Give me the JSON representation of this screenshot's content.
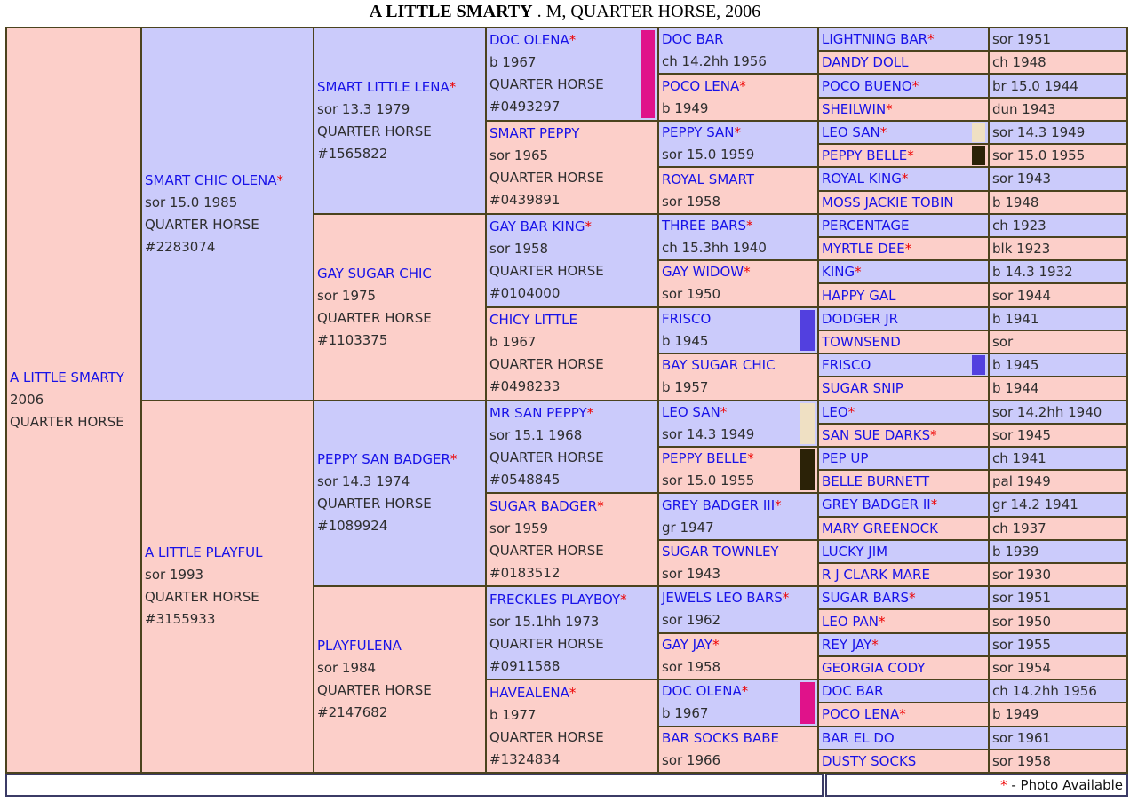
{
  "header": {
    "name": "A LITTLE SMARTY",
    "suffix": " . M, QUARTER HORSE, 2006"
  },
  "footer": {
    "star": "*",
    "note": " - Photo Available"
  },
  "colors": {
    "magenta": "#E0128A",
    "indigo": "#5240DF",
    "beige": "#EFE0C3",
    "darkbrown": "#2B2207",
    "sire_bg": "#CBCBFB",
    "dam_bg": "#FCCFC9",
    "name_blue": "#1812E8",
    "star_red": "#EE0202"
  },
  "pedigree": {
    "subject": {
      "name": "A LITTLE SMARTY",
      "star": false,
      "lines": [
        "2006",
        "QUARTER HORSE"
      ]
    },
    "gen1": [
      {
        "name": "SMART CHIC OLENA",
        "star": true,
        "lines": [
          "sor 15.0 1985",
          "QUARTER HORSE",
          "#2283074"
        ]
      },
      {
        "name": "A LITTLE PLAYFUL",
        "star": false,
        "lines": [
          "sor 1993",
          "QUARTER HORSE",
          "#3155933"
        ]
      }
    ],
    "gen2": [
      {
        "name": "SMART LITTLE LENA",
        "star": true,
        "lines": [
          "sor 13.3 1979",
          "QUARTER HORSE",
          "#1565822"
        ]
      },
      {
        "name": "GAY SUGAR CHIC",
        "star": false,
        "lines": [
          "sor 1975",
          "QUARTER HORSE",
          "#1103375"
        ]
      },
      {
        "name": "PEPPY SAN BADGER",
        "star": true,
        "lines": [
          "sor 14.3 1974",
          "QUARTER HORSE",
          "#1089924"
        ]
      },
      {
        "name": "PLAYFULENA",
        "star": false,
        "lines": [
          "sor 1984",
          "QUARTER HORSE",
          "#2147682"
        ]
      }
    ],
    "gen3": [
      {
        "name": "DOC OLENA",
        "star": true,
        "lines": [
          "b 1967",
          "QUARTER HORSE",
          "#0493297"
        ],
        "swatch": "magenta"
      },
      {
        "name": "SMART PEPPY",
        "star": false,
        "lines": [
          "sor 1965",
          "QUARTER HORSE",
          "#0439891"
        ]
      },
      {
        "name": "GAY BAR KING",
        "star": true,
        "lines": [
          "sor 1958",
          "QUARTER HORSE",
          "#0104000"
        ]
      },
      {
        "name": "CHICY LITTLE",
        "star": false,
        "lines": [
          "b 1967",
          "QUARTER HORSE",
          "#0498233"
        ]
      },
      {
        "name": "MR SAN PEPPY",
        "star": true,
        "lines": [
          "sor 15.1 1968",
          "QUARTER HORSE",
          "#0548845"
        ]
      },
      {
        "name": "SUGAR BADGER",
        "star": true,
        "lines": [
          "sor 1959",
          "QUARTER HORSE",
          "#0183512"
        ]
      },
      {
        "name": "FRECKLES PLAYBOY",
        "star": true,
        "lines": [
          "sor 15.1hh 1973",
          "QUARTER HORSE",
          "#0911588"
        ]
      },
      {
        "name": "HAVEALENA",
        "star": true,
        "lines": [
          "b 1977",
          "QUARTER HORSE",
          "#1324834"
        ]
      }
    ],
    "gen4": [
      {
        "name": "DOC BAR",
        "star": false,
        "info": "ch 14.2hh 1956"
      },
      {
        "name": "POCO LENA",
        "star": true,
        "info": "b 1949"
      },
      {
        "name": "PEPPY SAN",
        "star": true,
        "info": "sor 15.0 1959"
      },
      {
        "name": "ROYAL SMART",
        "star": false,
        "info": "sor 1958"
      },
      {
        "name": "THREE BARS",
        "star": true,
        "info": "ch 15.3hh 1940"
      },
      {
        "name": "GAY WIDOW",
        "star": true,
        "info": "sor 1950"
      },
      {
        "name": "FRISCO",
        "star": false,
        "info": "b 1945",
        "swatch": "indigo"
      },
      {
        "name": "BAY SUGAR CHIC",
        "star": false,
        "info": "b 1957"
      },
      {
        "name": "LEO SAN",
        "star": true,
        "info": "sor 14.3 1949",
        "swatch": "beige"
      },
      {
        "name": "PEPPY BELLE",
        "star": true,
        "info": "sor 15.0 1955",
        "swatch": "darkbrown"
      },
      {
        "name": "GREY BADGER III",
        "star": true,
        "info": "gr 1947"
      },
      {
        "name": "SUGAR TOWNLEY",
        "star": false,
        "info": "sor 1943"
      },
      {
        "name": "JEWELS LEO BARS",
        "star": true,
        "info": "sor 1962"
      },
      {
        "name": "GAY JAY",
        "star": true,
        "info": "sor 1958"
      },
      {
        "name": "DOC OLENA",
        "star": true,
        "info": "b 1967",
        "swatch": "magenta"
      },
      {
        "name": "BAR SOCKS BABE",
        "star": false,
        "info": "sor 1966"
      }
    ],
    "gen5": [
      {
        "name": "LIGHTNING BAR",
        "star": true,
        "info": "sor 1951"
      },
      {
        "name": "DANDY DOLL",
        "star": false,
        "info": "ch 1948"
      },
      {
        "name": "POCO BUENO",
        "star": true,
        "info": "br 15.0 1944"
      },
      {
        "name": "SHEILWIN",
        "star": true,
        "info": "dun 1943"
      },
      {
        "name": "LEO SAN",
        "star": true,
        "info": "sor 14.3 1949",
        "swatch": "beige"
      },
      {
        "name": "PEPPY BELLE",
        "star": true,
        "info": "sor 15.0 1955",
        "swatch": "darkbrown"
      },
      {
        "name": "ROYAL KING",
        "star": true,
        "info": "sor 1943"
      },
      {
        "name": "MOSS JACKIE TOBIN",
        "star": false,
        "info": "b 1948"
      },
      {
        "name": "PERCENTAGE",
        "star": false,
        "info": "ch 1923"
      },
      {
        "name": "MYRTLE DEE",
        "star": true,
        "info": "blk 1923"
      },
      {
        "name": "KING",
        "star": true,
        "info": "b 14.3 1932"
      },
      {
        "name": "HAPPY GAL",
        "star": false,
        "info": "sor 1944"
      },
      {
        "name": "DODGER JR",
        "star": false,
        "info": "b 1941"
      },
      {
        "name": "TOWNSEND",
        "star": false,
        "info": "sor"
      },
      {
        "name": "FRISCO",
        "star": false,
        "info": "b 1945",
        "swatch": "indigo"
      },
      {
        "name": "SUGAR SNIP",
        "star": false,
        "info": "b 1944"
      },
      {
        "name": "LEO",
        "star": true,
        "info": "sor 14.2hh 1940"
      },
      {
        "name": "SAN SUE DARKS",
        "star": true,
        "info": "sor 1945"
      },
      {
        "name": "PEP UP",
        "star": false,
        "info": "ch 1941"
      },
      {
        "name": "BELLE BURNETT",
        "star": false,
        "info": "pal 1949"
      },
      {
        "name": "GREY BADGER II",
        "star": true,
        "info": "gr 14.2 1941"
      },
      {
        "name": "MARY GREENOCK",
        "star": false,
        "info": "ch 1937"
      },
      {
        "name": "LUCKY JIM",
        "star": false,
        "info": "b 1939"
      },
      {
        "name": "R J CLARK MARE",
        "star": false,
        "info": "sor 1930"
      },
      {
        "name": "SUGAR BARS",
        "star": true,
        "info": "sor 1951"
      },
      {
        "name": "LEO PAN",
        "star": true,
        "info": "sor 1950"
      },
      {
        "name": "REY JAY",
        "star": true,
        "info": "sor 1955"
      },
      {
        "name": "GEORGIA CODY",
        "star": false,
        "info": "sor 1954"
      },
      {
        "name": "DOC BAR",
        "star": false,
        "info": "ch 14.2hh 1956"
      },
      {
        "name": "POCO LENA",
        "star": true,
        "info": "b 1949"
      },
      {
        "name": "BAR EL DO",
        "star": false,
        "info": "sor 1961"
      },
      {
        "name": "DUSTY SOCKS",
        "star": false,
        "info": "sor 1958"
      }
    ]
  }
}
